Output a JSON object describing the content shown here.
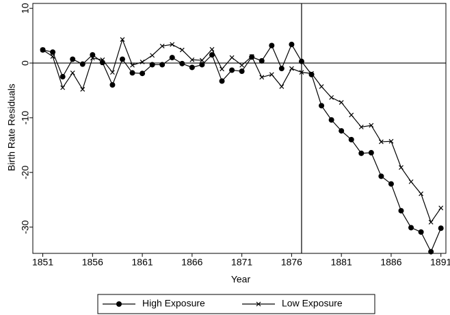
{
  "chart_data": {
    "type": "line",
    "x_label": "Year",
    "y_label": "Birth Rate Residuals",
    "x": [
      1851,
      1852,
      1853,
      1854,
      1855,
      1856,
      1857,
      1858,
      1859,
      1860,
      1861,
      1862,
      1863,
      1864,
      1865,
      1866,
      1867,
      1868,
      1869,
      1870,
      1871,
      1872,
      1873,
      1874,
      1875,
      1876,
      1877,
      1878,
      1879,
      1880,
      1881,
      1882,
      1883,
      1884,
      1885,
      1886,
      1887,
      1888,
      1889,
      1890,
      1891
    ],
    "series": [
      {
        "name": "High Exposure",
        "color": "#000000",
        "marker": "circle",
        "values": [
          2.4,
          2.0,
          -2.5,
          0.7,
          -0.2,
          1.5,
          0.1,
          -4.0,
          0.7,
          -1.8,
          -1.9,
          -0.3,
          -0.3,
          1.0,
          -0.1,
          -0.8,
          -0.3,
          1.5,
          -3.3,
          -1.3,
          -1.5,
          1.1,
          0.4,
          3.2,
          -1.0,
          3.4,
          0.3,
          -2.1,
          -7.8,
          -10.4,
          -12.4,
          -14.0,
          -16.5,
          -16.4,
          -20.7,
          -22.1,
          -27.0,
          -30.1,
          -30.9,
          -34.5,
          -30.2
        ]
      },
      {
        "name": "Low Exposure",
        "color": "#000000",
        "marker": "x",
        "values": [
          2.4,
          1.2,
          -4.5,
          -1.8,
          -4.8,
          0.9,
          0.6,
          -1.7,
          4.3,
          -0.4,
          0.2,
          1.4,
          3.1,
          3.4,
          2.4,
          0.6,
          0.5,
          2.5,
          -1.1,
          1.0,
          -0.4,
          1.2,
          -2.6,
          -2.1,
          -4.3,
          -1.0,
          -1.7,
          -1.9,
          -4.3,
          -6.3,
          -7.2,
          -9.5,
          -11.7,
          -11.4,
          -14.4,
          -14.3,
          -19.1,
          -21.7,
          -23.9,
          -29.1,
          -26.5
        ]
      }
    ],
    "reference_lines": {
      "x": 1877,
      "y": 0
    },
    "xlim": [
      1850,
      1891.5
    ],
    "xticks": [
      1851,
      1856,
      1861,
      1866,
      1871,
      1876,
      1881,
      1886,
      1891
    ],
    "ylim": [
      -34.8,
      10.9
    ],
    "yticks": [
      10,
      0,
      -10,
      -20,
      -30
    ],
    "grid": false,
    "legend": "bottom"
  }
}
